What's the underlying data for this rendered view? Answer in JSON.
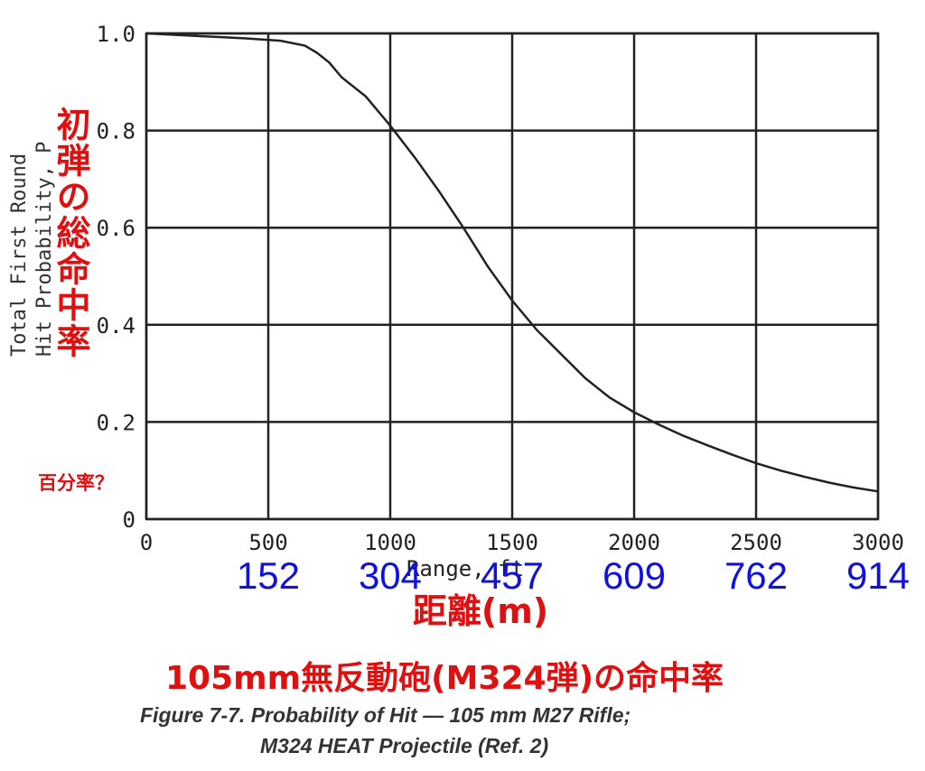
{
  "chart_data": {
    "type": "line",
    "xlabel": "Range, ft",
    "ylabel_en": [
      "Total First Round",
      "Hit Probability, P"
    ],
    "ylabel_jp": "初弾の総命中率",
    "percent_note": "百分率？",
    "xlabel_jp": "距離(m)",
    "title_jp": "105mm無反動砲(M324弾)の命中率",
    "caption_lines": [
      "Figure 7-7.  Probability of Hit — 105 mm M27 Rifle;",
      "M324 HEAT Projectile (Ref. 2)"
    ],
    "xlim": [
      0,
      3000
    ],
    "ylim": [
      0,
      1.0
    ],
    "x_ticks": [
      0,
      500,
      1000,
      1500,
      2000,
      2500,
      3000
    ],
    "x_tick_labels": [
      "0",
      "500",
      "1000",
      "1500",
      "2000",
      "2500",
      "3000"
    ],
    "y_ticks": [
      0,
      0.2,
      0.4,
      0.6,
      0.8,
      1.0
    ],
    "y_tick_labels": [
      "0",
      "0.2",
      "0.4",
      "0.6",
      "0.8",
      "1.0"
    ],
    "meter_labels": [
      "152",
      "304",
      "457",
      "609",
      "762",
      "914"
    ],
    "grid": true,
    "series": [
      {
        "x": [
          0,
          200,
          400,
          550,
          650,
          700,
          750,
          800,
          900,
          1000,
          1100,
          1200,
          1300,
          1400,
          1500,
          1600,
          1700,
          1800,
          1900,
          2000,
          2100,
          2200,
          2300,
          2400,
          2500,
          2600,
          2700,
          2800,
          2900,
          3000
        ],
        "y": [
          1.0,
          0.995,
          0.99,
          0.985,
          0.975,
          0.96,
          0.94,
          0.91,
          0.87,
          0.81,
          0.745,
          0.675,
          0.6,
          0.52,
          0.45,
          0.39,
          0.34,
          0.29,
          0.25,
          0.22,
          0.195,
          0.172,
          0.152,
          0.133,
          0.115,
          0.1,
          0.087,
          0.075,
          0.065,
          0.057
        ]
      }
    ]
  },
  "colors": {
    "annotation_red": "#e01010",
    "annotation_blue": "#1010e0",
    "grid": "#222222"
  }
}
